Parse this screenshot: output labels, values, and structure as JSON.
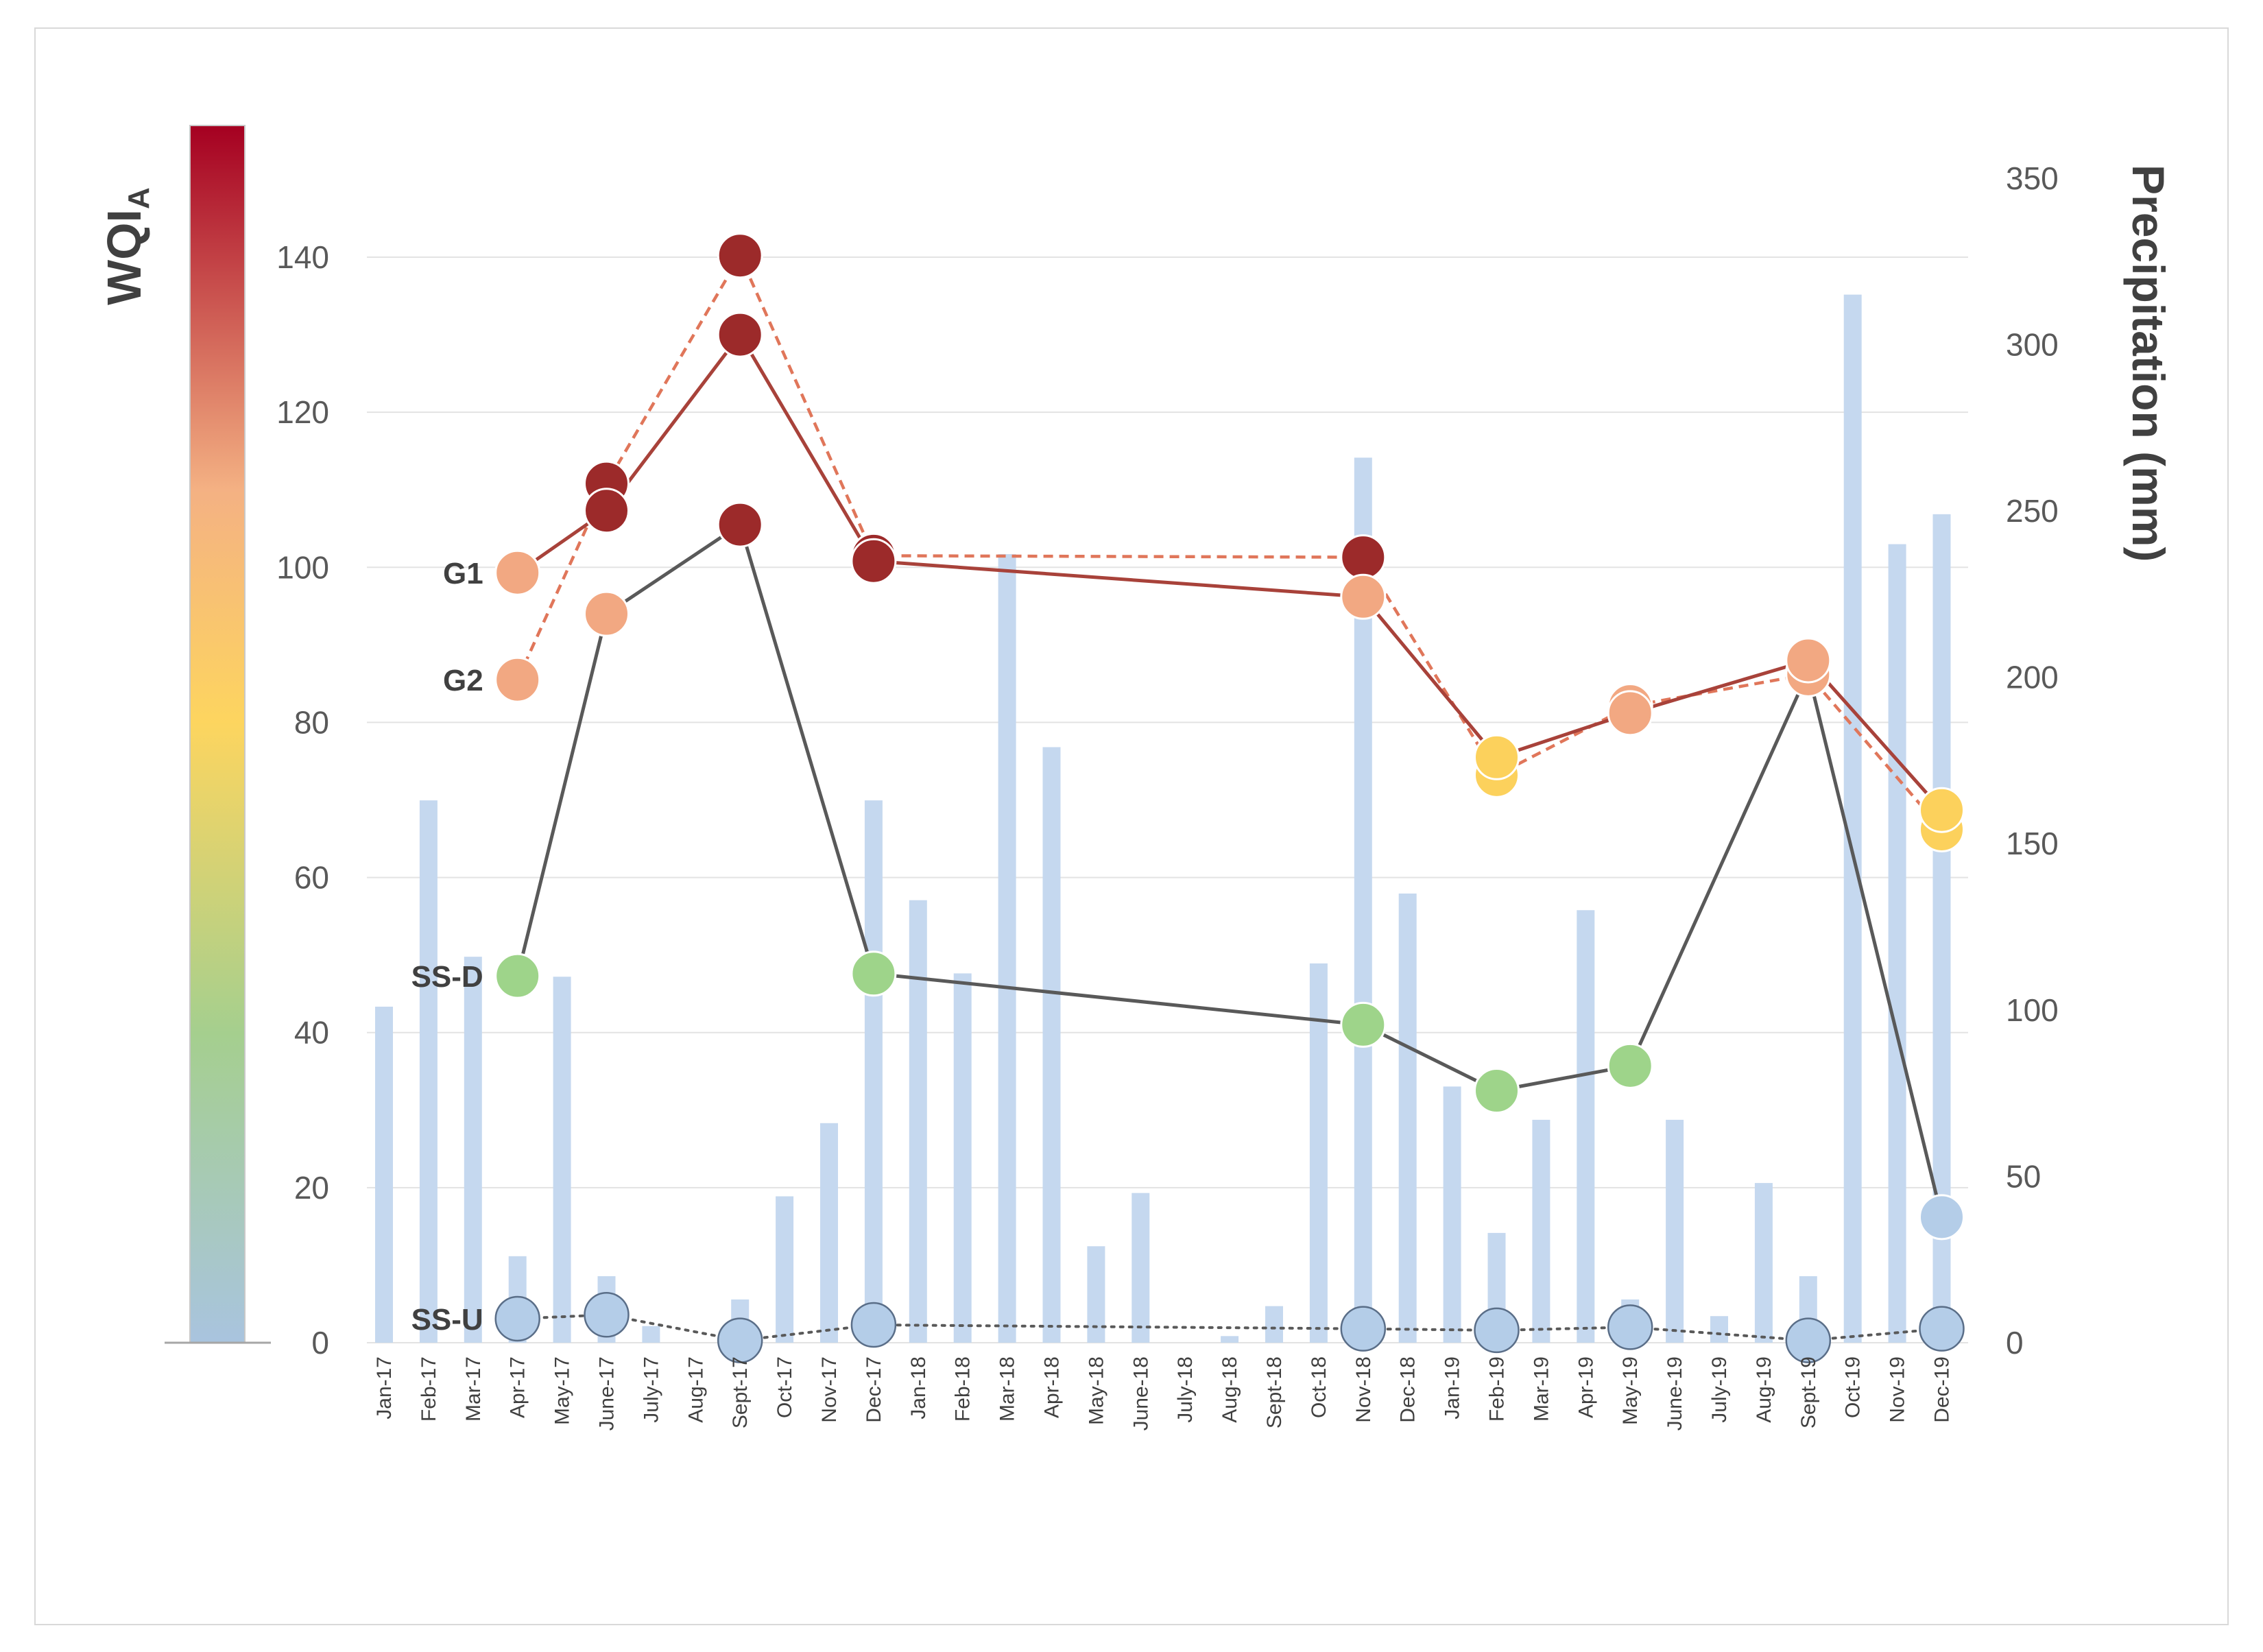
{
  "chart_data": {
    "type": "line+bar",
    "categories": [
      "Jan-17",
      "Feb-17",
      "Mar-17",
      "Apr-17",
      "May-17",
      "June-17",
      "July-17",
      "Aug-17",
      "Sept-17",
      "Oct-17",
      "Nov-17",
      "Dec-17",
      "Jan-18",
      "Feb-18",
      "Mar-18",
      "Apr-18",
      "May-18",
      "June-18",
      "July-18",
      "Aug-18",
      "Sept-18",
      "Oct-18",
      "Nov-18",
      "Dec-18",
      "Jan-19",
      "Feb-19",
      "Mar-19",
      "Apr-19",
      "May-19",
      "June-19",
      "July-19",
      "Aug-19",
      "Sept-19",
      "Oct-19",
      "Nov-19",
      "Dec-19"
    ],
    "left_axis": {
      "title_main": "WQI",
      "title_sub": "A",
      "ticks": [
        "0",
        "20",
        "40",
        "60",
        "80",
        "100",
        "120",
        "140"
      ],
      "ylim": [
        0,
        157
      ]
    },
    "right_axis": {
      "title": "Precipitation (mm)",
      "ticks": [
        "0",
        "50",
        "100",
        "150",
        "200",
        "250",
        "300",
        "350"
      ],
      "ylim": [
        0,
        366
      ]
    },
    "precipitation": {
      "name": "Precipitation (mm)",
      "color": "#c5d8ef",
      "values": [
        101,
        163,
        116,
        26,
        110,
        20,
        5,
        0,
        13,
        44,
        66,
        163,
        133,
        111,
        237,
        179,
        29,
        45,
        0,
        2,
        11,
        114,
        266,
        135,
        77,
        33,
        67,
        130,
        13,
        67,
        8,
        48,
        20,
        315,
        240,
        249
      ]
    },
    "series": [
      {
        "name": "G1",
        "label": "G1",
        "style": "solid",
        "line_color": "#a8423a",
        "points": [
          {
            "x": "Apr-17",
            "y": 99.3,
            "color": "#f2a882"
          },
          {
            "x": "June-17",
            "y": 107.3,
            "color": "#9c2a2a"
          },
          {
            "x": "Sept-17",
            "y": 130,
            "color": "#9c2a2a"
          },
          {
            "x": "Dec-17",
            "y": 100.8,
            "color": "#9c2a2a"
          },
          {
            "x": "Nov-18",
            "y": 96.2,
            "color": "#f2a882"
          },
          {
            "x": "Feb-19",
            "y": 75.5,
            "color": "#fcd15c"
          },
          {
            "x": "May-19",
            "y": 81.2,
            "color": "#f2a882"
          },
          {
            "x": "Sept-19",
            "y": 88,
            "color": "#f2a882"
          },
          {
            "x": "Dec-19",
            "y": 68.7,
            "color": "#fcd15c"
          }
        ]
      },
      {
        "name": "G2",
        "label": "G2",
        "style": "dashed",
        "line_color": "#e0765a",
        "points": [
          {
            "x": "Apr-17",
            "y": 85.5,
            "color": "#f2a882"
          },
          {
            "x": "June-17",
            "y": 110.8,
            "color": "#9c2a2a"
          },
          {
            "x": "Sept-17",
            "y": 140.2,
            "color": "#9c2a2a"
          },
          {
            "x": "Dec-17",
            "y": 101.5,
            "color": "#9c2a2a"
          },
          {
            "x": "Nov-18",
            "y": 101.3,
            "color": "#9c2a2a"
          },
          {
            "x": "Feb-19",
            "y": 73.2,
            "color": "#fcd15c"
          },
          {
            "x": "May-19",
            "y": 82.1,
            "color": "#f2a882"
          },
          {
            "x": "Sept-19",
            "y": 86.2,
            "color": "#f2a882"
          },
          {
            "x": "Dec-19",
            "y": 66.2,
            "color": "#fcd15c"
          }
        ]
      },
      {
        "name": "SS-D",
        "label": "SS-D",
        "style": "solid",
        "line_color": "#595959",
        "points": [
          {
            "x": "Apr-17",
            "y": 47.3,
            "color": "#9ed48a"
          },
          {
            "x": "June-17",
            "y": 94,
            "color": "#f2a882"
          },
          {
            "x": "Sept-17",
            "y": 105.5,
            "color": "#9c2a2a"
          },
          {
            "x": "Dec-17",
            "y": 47.6,
            "color": "#9ed48a"
          },
          {
            "x": "Nov-18",
            "y": 41,
            "color": "#9ed48a"
          },
          {
            "x": "Feb-19",
            "y": 32.5,
            "color": "#9ed48a"
          },
          {
            "x": "May-19",
            "y": 35.7,
            "color": "#9ed48a"
          },
          {
            "x": "Sept-19",
            "y": 86.5,
            "color": "#f2a882"
          },
          {
            "x": "Dec-19",
            "y": 16.2,
            "color": "#b4cde8"
          }
        ]
      },
      {
        "name": "SS-U",
        "label": "SS-U",
        "style": "dotted",
        "line_color": "#595959",
        "points": [
          {
            "x": "Apr-17",
            "y": 3.1,
            "color": "#b4cde8"
          },
          {
            "x": "June-17",
            "y": 3.6,
            "color": "#b4cde8"
          },
          {
            "x": "Sept-17",
            "y": 0.3,
            "color": "#b4cde8"
          },
          {
            "x": "Dec-17",
            "y": 2.3,
            "color": "#b4cde8"
          },
          {
            "x": "Nov-18",
            "y": 1.8,
            "color": "#b4cde8"
          },
          {
            "x": "Feb-19",
            "y": 1.6,
            "color": "#b4cde8"
          },
          {
            "x": "May-19",
            "y": 2.0,
            "color": "#b4cde8"
          },
          {
            "x": "Sept-19",
            "y": 0.3,
            "color": "#b4cde8"
          },
          {
            "x": "Dec-19",
            "y": 1.8,
            "color": "#b4cde8"
          }
        ]
      }
    ],
    "colorbar": {
      "stops": [
        {
          "value": 0,
          "color": "#a9c4df"
        },
        {
          "value": 40,
          "color": "#a5cf8e"
        },
        {
          "value": 80,
          "color": "#fdd55f"
        },
        {
          "value": 110,
          "color": "#f4b183"
        },
        {
          "value": 157,
          "color": "#a50021"
        }
      ]
    },
    "grid": true,
    "legend": "inline labels left of series"
  }
}
